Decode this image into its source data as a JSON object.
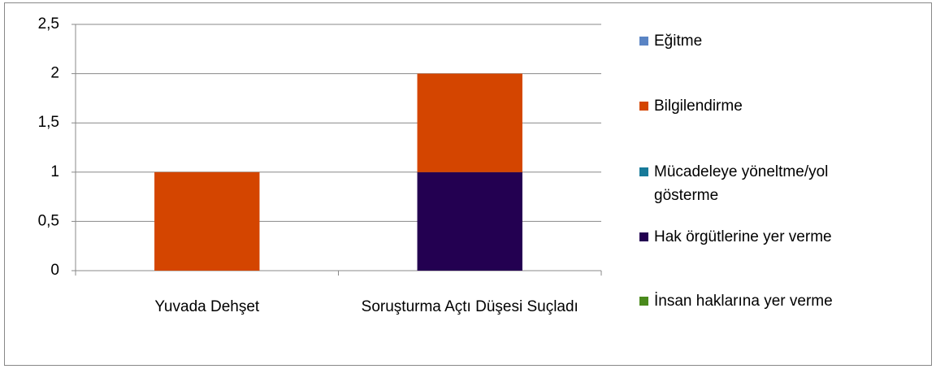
{
  "chart_data": {
    "type": "stacked_bar",
    "categories": [
      "Yuvada Dehşet",
      "Soruşturma Açtı Düşesi Suçladı"
    ],
    "series": [
      {
        "name": "Eğitme",
        "color": "#5a84c4",
        "values": [
          0,
          0
        ]
      },
      {
        "name": "Bilgilendirme",
        "color": "#d44500",
        "values": [
          1,
          1
        ]
      },
      {
        "name": "Mücadeleye yöneltme/yol gösterme",
        "color": "#177a99",
        "values": [
          0,
          0
        ]
      },
      {
        "name": "Hak örgütlerine yer verme",
        "color": "#230051",
        "values": [
          0,
          1
        ]
      },
      {
        "name": "İnsan haklarına yer verme",
        "color": "#4a8a1c",
        "values": [
          0,
          0
        ]
      }
    ],
    "ylim": [
      0,
      2.5
    ],
    "yticks": [
      0,
      {
        "value": 0.5,
        "label": "0,5"
      },
      1,
      {
        "value": 1.5,
        "label": "1,5"
      },
      2,
      {
        "value": 2.5,
        "label": "2,5"
      }
    ],
    "grid": true,
    "legend": "right"
  }
}
